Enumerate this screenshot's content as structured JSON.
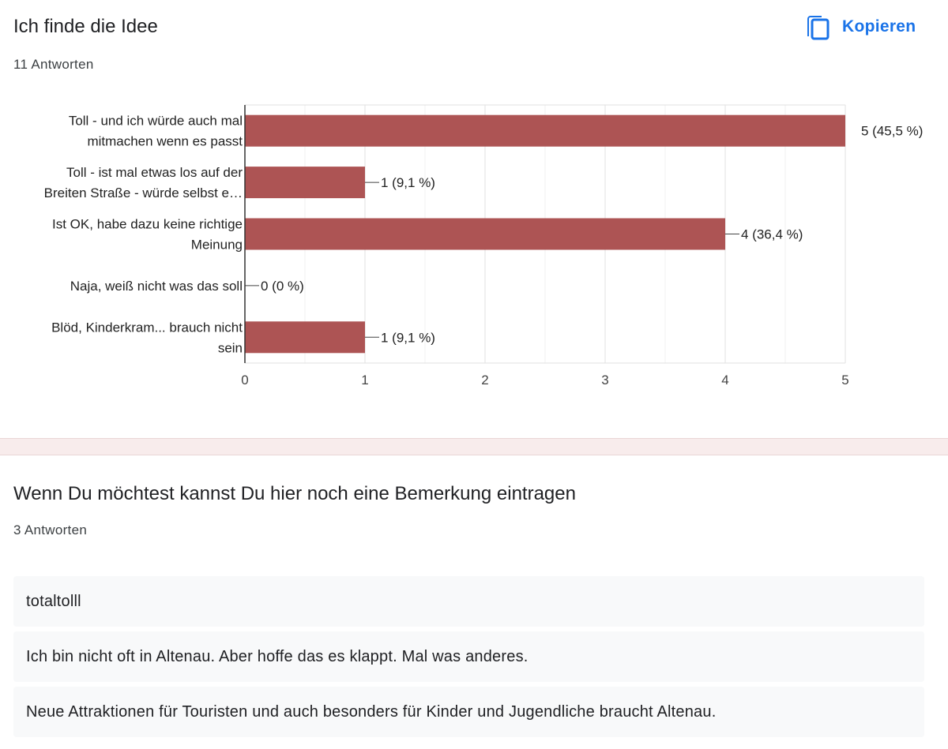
{
  "question1": {
    "title": "Ich finde die Idee",
    "count": "11 Antworten",
    "copy_label": "Kopieren"
  },
  "chart_data": {
    "type": "bar",
    "orientation": "horizontal",
    "categories": [
      [
        "Toll - und ich würde auch mal",
        "mitmachen wenn es passt"
      ],
      [
        "Toll - ist mal etwas los auf der",
        "Breiten Straße - würde selbst e…"
      ],
      [
        "Ist OK, habe dazu keine richtige",
        "Meinung"
      ],
      [
        "Naja, weiß nicht was das soll"
      ],
      [
        "Blöd, Kinderkram... brauch nicht",
        "sein"
      ]
    ],
    "values": [
      5,
      1,
      4,
      0,
      1
    ],
    "data_labels": [
      "5 (45,5 %)",
      "1 (9,1 %)",
      "4 (36,4 %)",
      "0 (0 %)",
      "1 (9,1 %)"
    ],
    "xticks": [
      "0",
      "1",
      "2",
      "3",
      "4",
      "5"
    ],
    "xlim": [
      0,
      5
    ],
    "grid": true,
    "bar_color": "#ad5454"
  },
  "question2": {
    "title": "Wenn Du möchtest kannst Du hier noch eine Bemerkung eintragen",
    "count": "3 Antworten",
    "responses": [
      "totaltolll",
      "Ich bin nicht oft in Altenau. Aber hoffe das es klappt. Mal was anderes.",
      "Neue Attraktionen für Touristen und auch besonders für Kinder und Jugendliche braucht Altenau."
    ]
  }
}
